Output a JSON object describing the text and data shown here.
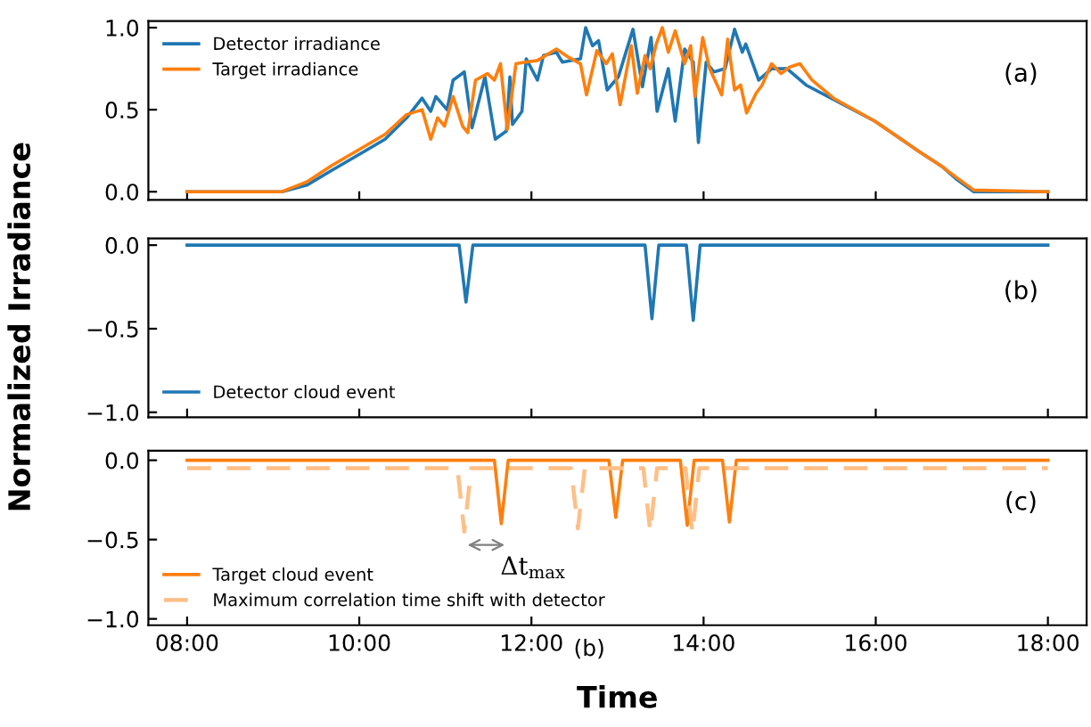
{
  "chart_data": [
    {
      "type": "line",
      "ylim": [
        -0.05,
        1.04
      ],
      "yticks": [
        {
          "value": 0,
          "label": "0.0"
        },
        {
          "value": 0.5,
          "label": "0.5"
        },
        {
          "value": 1,
          "label": "1.0"
        }
      ],
      "xlim": [
        7.55,
        18.45
      ],
      "xticks": [
        {
          "value": 8,
          "label": null
        },
        {
          "value": 10,
          "label": null
        },
        {
          "value": 12,
          "label": null
        },
        {
          "value": 14,
          "label": null
        },
        {
          "value": 16,
          "label": null
        },
        {
          "value": 18,
          "label": null
        }
      ],
      "tick_labels": "y",
      "legend": "top left",
      "grid": false,
      "annotations": [
        "(a)"
      ],
      "series": [
        {
          "name": "Detector irradiance",
          "color": "#1f77b4",
          "x": [
            8,
            9.1,
            9.39,
            9.68,
            10.04,
            10.3,
            10.55,
            10.73,
            10.83,
            10.89,
            11.02,
            11.09,
            11.22,
            11.31,
            11.46,
            11.58,
            11.71,
            11.75,
            11.78,
            11.89,
            11.94,
            12.07,
            12.14,
            12.29,
            12.36,
            12.57,
            12.63,
            12.71,
            12.78,
            12.88,
            13.01,
            13.18,
            13.29,
            13.39,
            13.46,
            13.59,
            13.67,
            13.78,
            13.88,
            13.94,
            14.03,
            14.12,
            14.25,
            14.36,
            14.45,
            14.49,
            14.64,
            14.79,
            14.97,
            15.19,
            15.48,
            15.99,
            16.49,
            16.78,
            16.93,
            17.14,
            18
          ],
          "values": [
            0,
            0,
            0.04,
            0.13,
            0.24,
            0.32,
            0.45,
            0.57,
            0.49,
            0.58,
            0.5,
            0.68,
            0.73,
            0.39,
            0.7,
            0.32,
            0.37,
            0.7,
            0.41,
            0.49,
            0.81,
            0.68,
            0.83,
            0.85,
            0.79,
            0.81,
            1.0,
            0.89,
            0.92,
            0.62,
            0.7,
            0.99,
            0.64,
            0.94,
            0.49,
            0.75,
            0.43,
            0.87,
            0.79,
            0.3,
            0.79,
            0.73,
            0.75,
            0.99,
            0.85,
            0.9,
            0.68,
            0.75,
            0.75,
            0.65,
            0.57,
            0.43,
            0.25,
            0.15,
            0.08,
            0,
            0
          ]
        },
        {
          "name": "Target irradiance",
          "color": "#ff7f0e",
          "x": [
            8,
            9.1,
            9.39,
            9.68,
            10.04,
            10.3,
            10.55,
            10.73,
            10.83,
            10.91,
            10.99,
            11.09,
            11.2,
            11.26,
            11.35,
            11.49,
            11.57,
            11.64,
            11.72,
            11.82,
            11.93,
            12.07,
            12.29,
            12.43,
            12.57,
            12.64,
            12.76,
            12.87,
            12.94,
            13.03,
            13.16,
            13.23,
            13.32,
            13.38,
            13.45,
            13.52,
            13.59,
            13.67,
            13.78,
            13.85,
            13.9,
            13.99,
            14.07,
            14.21,
            14.28,
            14.36,
            14.43,
            14.5,
            14.61,
            14.68,
            14.79,
            14.9,
            15.0,
            15.12,
            15.26,
            15.51,
            15.99,
            16.49,
            16.78,
            16.93,
            17.14,
            18
          ],
          "values": [
            0,
            0,
            0.06,
            0.16,
            0.27,
            0.35,
            0.47,
            0.5,
            0.32,
            0.45,
            0.4,
            0.58,
            0.4,
            0.36,
            0.68,
            0.72,
            0.68,
            0.78,
            0.38,
            0.78,
            0.79,
            0.8,
            0.87,
            0.82,
            0.78,
            0.59,
            0.86,
            0.78,
            0.84,
            0.53,
            0.89,
            0.6,
            0.83,
            0.75,
            0.9,
            1.0,
            0.85,
            0.98,
            0.78,
            0.89,
            0.58,
            0.94,
            0.75,
            0.59,
            0.93,
            0.62,
            0.65,
            0.48,
            0.6,
            0.65,
            0.78,
            0.72,
            0.76,
            0.78,
            0.68,
            0.57,
            0.43,
            0.25,
            0.15,
            0.09,
            0.01,
            0
          ]
        }
      ]
    },
    {
      "type": "line",
      "ylim": [
        -1.03,
        0.04
      ],
      "yticks": [
        {
          "value": 0,
          "label": "0.0"
        },
        {
          "value": -0.5,
          "label": "−0.5"
        },
        {
          "value": -1,
          "label": "−1.0"
        }
      ],
      "xlim": [
        7.55,
        18.45
      ],
      "xticks": [
        {
          "value": 8,
          "label": null
        },
        {
          "value": 10,
          "label": null
        },
        {
          "value": 12,
          "label": null
        },
        {
          "value": 14,
          "label": null
        },
        {
          "value": 16,
          "label": null
        },
        {
          "value": 18,
          "label": null
        }
      ],
      "tick_labels": "y",
      "legend": "bottom left",
      "grid": false,
      "ylabel": "Normalized Irradiance",
      "annotations": [
        "(b)"
      ],
      "series": [
        {
          "name": "Detector cloud event",
          "color": "#1f77b4",
          "x": [
            8,
            11.16,
            11.24,
            11.32,
            13.32,
            13.4,
            13.48,
            13.8,
            13.88,
            13.96,
            18
          ],
          "values": [
            0,
            0,
            -0.34,
            0,
            0,
            -0.44,
            0,
            0,
            -0.45,
            0,
            0
          ]
        }
      ]
    },
    {
      "type": "line",
      "ylim": [
        -1.04,
        0.06
      ],
      "yticks": [
        {
          "value": 0,
          "label": "0.0"
        },
        {
          "value": -0.5,
          "label": "−0.5"
        },
        {
          "value": -1,
          "label": "−1.0"
        }
      ],
      "xlim": [
        7.55,
        18.45
      ],
      "xticks": [
        {
          "value": 8,
          "label": "08:00"
        },
        {
          "value": 10,
          "label": "10:00"
        },
        {
          "value": 12,
          "label": "12:00"
        },
        {
          "value": 14,
          "label": "14:00"
        },
        {
          "value": 16,
          "label": "16:00"
        },
        {
          "value": 18,
          "label": "18:00"
        }
      ],
      "legend": "bottom left",
      "grid": false,
      "xlabel": "Time",
      "annotations": [
        "(c)",
        "Δt$_{max}$",
        "(b)"
      ],
      "series": [
        {
          "name": "Target cloud event",
          "color": "#ff7f0e",
          "line_style": "solid",
          "x": [
            8,
            11.57,
            11.65,
            11.73,
            12.9,
            12.98,
            13.06,
            13.73,
            13.81,
            13.89,
            14.22,
            14.3,
            14.38,
            18
          ],
          "values": [
            0,
            0,
            -0.4,
            0,
            0,
            -0.36,
            0,
            0,
            -0.41,
            0,
            0,
            -0.39,
            0,
            0
          ]
        },
        {
          "name": "Maximum correlation time shift with detector",
          "color": "#ffbf86",
          "line_style": "dashed",
          "x": [
            8,
            11.14,
            11.22,
            11.3,
            12.46,
            12.54,
            12.62,
            13.3,
            13.38,
            13.46,
            13.79,
            13.87,
            13.95,
            18
          ],
          "values": [
            -0.05,
            -0.05,
            -0.45,
            -0.05,
            -0.05,
            -0.43,
            -0.05,
            -0.05,
            -0.45,
            -0.05,
            -0.05,
            -0.46,
            -0.05,
            -0.05
          ]
        }
      ]
    }
  ]
}
